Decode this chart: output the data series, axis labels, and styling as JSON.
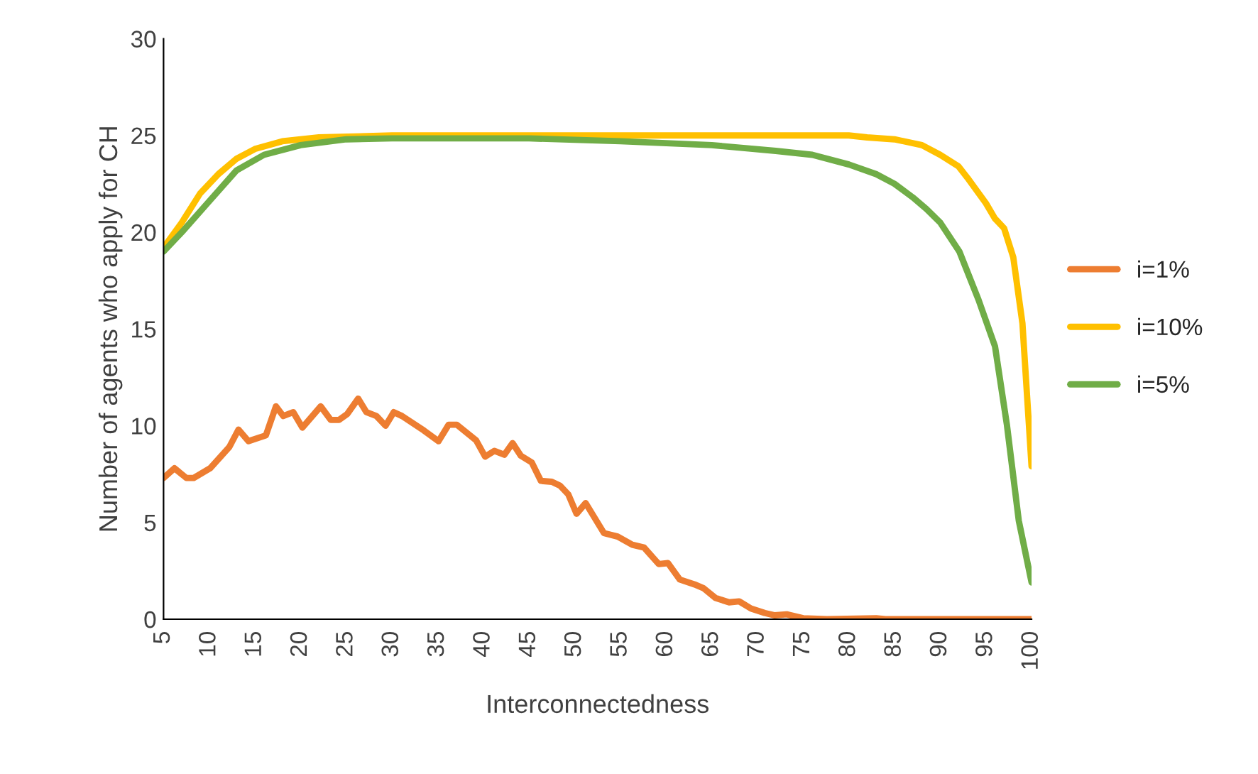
{
  "chart_data": {
    "type": "line",
    "xlabel": "Interconnectedness",
    "ylabel": "Number of agents who apply for CH",
    "xlim": [
      5,
      100
    ],
    "xticks": [
      5,
      10,
      15,
      20,
      25,
      30,
      35,
      40,
      45,
      50,
      55,
      60,
      65,
      70,
      75,
      80,
      85,
      90,
      95,
      100
    ],
    "ylim": [
      0,
      30
    ],
    "yticks": [
      0,
      5,
      10,
      15,
      20,
      25,
      30
    ],
    "grid": false,
    "legend": "right",
    "marker": "none",
    "line_style": "solid",
    "series": [
      {
        "name": "i=1%",
        "color": "#ed7d31",
        "x": [
          5,
          6.2,
          7.5,
          8.3,
          10.1,
          12.2,
          13.2,
          14.3,
          16.2,
          17.3,
          18.1,
          19.2,
          20.2,
          22.2,
          23.3,
          24.2,
          25.1,
          26.3,
          27.2,
          28.3,
          29.3,
          30.2,
          31.1,
          33.5,
          35.1,
          36.2,
          37.1,
          39.2,
          40.2,
          41.2,
          42.3,
          43.2,
          44.1,
          45.3,
          46.3,
          47.5,
          48.4,
          49.3,
          50.2,
          51.2,
          53.2,
          54.7,
          56.3,
          57.6,
          59.2,
          60.2,
          61.5,
          63.1,
          64.1,
          65.4,
          66.9,
          68.0,
          69.3,
          70.8,
          71.9,
          73.2,
          75,
          77.6,
          83,
          84,
          100
        ],
        "values": [
          7.3,
          7.8,
          7.3,
          7.3,
          7.8,
          8.9,
          9.8,
          9.2,
          9.5,
          11.0,
          10.5,
          10.7,
          9.9,
          11.0,
          10.3,
          10.3,
          10.6,
          11.4,
          10.7,
          10.5,
          10.0,
          10.7,
          10.5,
          9.75,
          9.2,
          10.05,
          10.05,
          9.25,
          8.4,
          8.7,
          8.5,
          9.1,
          8.45,
          8.1,
          7.15,
          7.1,
          6.9,
          6.45,
          5.45,
          6.0,
          4.45,
          4.27,
          3.85,
          3.7,
          2.85,
          2.9,
          2.05,
          1.8,
          1.6,
          1.1,
          0.87,
          0.92,
          0.55,
          0.32,
          0.2,
          0.25,
          0.05,
          0,
          0.05,
          0,
          0
        ]
      },
      {
        "name": "i=10%",
        "color": "#ffc000",
        "x": [
          5,
          7,
          9,
          11,
          13,
          15,
          18,
          22,
          30,
          80,
          82,
          85,
          88,
          90,
          92,
          93,
          95,
          96,
          97,
          98,
          99,
          100
        ],
        "values": [
          19.2,
          20.5,
          22.0,
          23.0,
          23.8,
          24.3,
          24.7,
          24.9,
          25.0,
          25.0,
          24.9,
          24.8,
          24.5,
          24.0,
          23.4,
          22.8,
          21.5,
          20.7,
          20.2,
          18.7,
          15.3,
          7.9
        ]
      },
      {
        "name": "i=5%",
        "color": "#70ad47",
        "x": [
          5,
          7,
          10,
          13,
          16,
          20,
          25,
          30,
          45,
          55,
          65,
          72,
          76,
          80,
          83,
          85,
          87,
          88.5,
          90,
          92.1,
          94.2,
          96,
          97.3,
          98.6,
          100
        ],
        "values": [
          19.0,
          20.0,
          21.6,
          23.2,
          24.0,
          24.5,
          24.8,
          24.85,
          24.85,
          24.7,
          24.5,
          24.2,
          24.0,
          23.5,
          23.0,
          22.5,
          21.8,
          21.2,
          20.5,
          19.0,
          16.5,
          14.1,
          10.05,
          5.1,
          1.9
        ]
      }
    ]
  }
}
